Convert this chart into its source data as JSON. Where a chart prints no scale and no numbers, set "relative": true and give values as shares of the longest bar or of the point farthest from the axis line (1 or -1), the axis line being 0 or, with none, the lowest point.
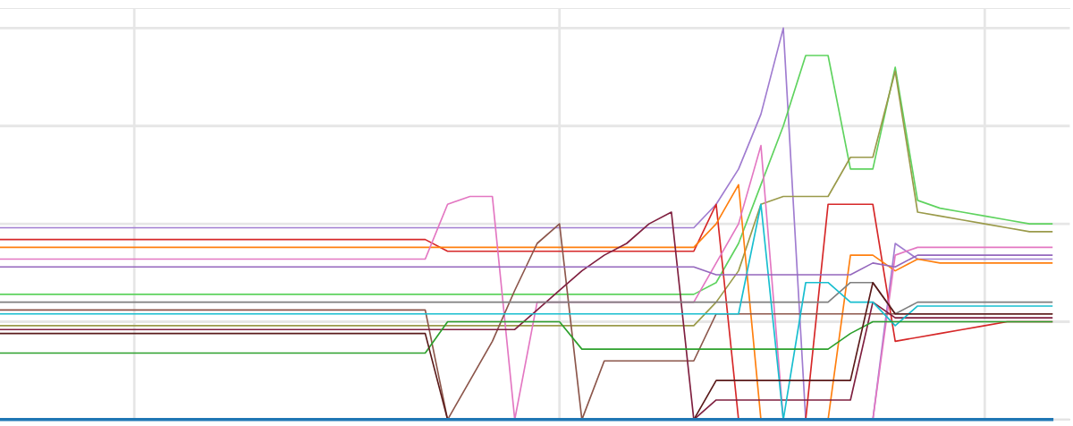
{
  "chart_data": {
    "type": "line",
    "relative": true,
    "grid": true,
    "tick_labels": false,
    "line_style": "solid",
    "categories": [
      null,
      null,
      null,
      null,
      null,
      null,
      null,
      null,
      null,
      null,
      null,
      null,
      null,
      null,
      null,
      null,
      null,
      null,
      null,
      null,
      null,
      null,
      null,
      null,
      null,
      null,
      null,
      null,
      null,
      null,
      null,
      null,
      null,
      null,
      null,
      null,
      null,
      null,
      null,
      null,
      null,
      null,
      null,
      null,
      null,
      null,
      null,
      null
    ],
    "series": [
      {
        "color": "#a07cd0",
        "values": [
          0.49,
          0.49,
          0.49,
          0.49,
          0.49,
          0.49,
          0.49,
          0.49,
          0.49,
          0.49,
          0.49,
          0.49,
          0.49,
          0.49,
          0.49,
          0.49,
          0.49,
          0.49,
          0.49,
          0.49,
          0.49,
          0.49,
          0.49,
          0.49,
          0.49,
          0.49,
          0.49,
          0.49,
          0.49,
          0.49,
          0.49,
          0.49,
          0.55,
          0.64,
          0.78,
          1,
          0,
          0,
          0,
          0,
          0.45,
          0.41,
          0.41,
          0.41,
          0.41,
          0.41,
          0.41,
          0.41
        ]
      },
      {
        "color": "#5fd35f",
        "values": [
          0.32,
          0.32,
          0.32,
          0.32,
          0.32,
          0.32,
          0.32,
          0.32,
          0.32,
          0.32,
          0.32,
          0.32,
          0.32,
          0.32,
          0.32,
          0.32,
          0.32,
          0.32,
          0.32,
          0.32,
          0.32,
          0.32,
          0.32,
          0.32,
          0.32,
          0.32,
          0.32,
          0.32,
          0.32,
          0.32,
          0.32,
          0.32,
          0.35,
          0.45,
          0.6,
          0.75,
          0.93,
          0.93,
          0.64,
          0.64,
          0.9,
          0.56,
          0.54,
          0.53,
          0.52,
          0.51,
          0.5,
          0.5
        ]
      },
      {
        "color": "#9a9a4a",
        "values": [
          0.24,
          0.24,
          0.24,
          0.24,
          0.24,
          0.24,
          0.24,
          0.24,
          0.24,
          0.24,
          0.24,
          0.24,
          0.24,
          0.24,
          0.24,
          0.24,
          0.24,
          0.24,
          0.24,
          0.24,
          0.24,
          0.24,
          0.24,
          0.24,
          0.24,
          0.24,
          0.24,
          0.24,
          0.24,
          0.24,
          0.24,
          0.24,
          0.3,
          0.38,
          0.55,
          0.57,
          0.57,
          0.57,
          0.67,
          0.67,
          0.89,
          0.53,
          0.52,
          0.51,
          0.5,
          0.49,
          0.48,
          0.48
        ]
      },
      {
        "color": "#d62728",
        "values": [
          0.46,
          0.46,
          0.46,
          0.46,
          0.46,
          0.46,
          0.46,
          0.46,
          0.46,
          0.46,
          0.46,
          0.46,
          0.46,
          0.46,
          0.46,
          0.46,
          0.46,
          0.46,
          0.46,
          0.46,
          0.43,
          0.43,
          0.43,
          0.43,
          0.43,
          0.43,
          0.43,
          0.43,
          0.43,
          0.43,
          0.43,
          0.43,
          0.55,
          0,
          0,
          0,
          0,
          0.55,
          0.55,
          0.55,
          0.2,
          0.21,
          0.22,
          0.23,
          0.24,
          0.25,
          0.25,
          0.25
        ]
      },
      {
        "color": "#ff7f0e",
        "values": [
          0.44,
          0.44,
          0.44,
          0.44,
          0.44,
          0.44,
          0.44,
          0.44,
          0.44,
          0.44,
          0.44,
          0.44,
          0.44,
          0.44,
          0.44,
          0.44,
          0.44,
          0.44,
          0.44,
          0.44,
          0.44,
          0.44,
          0.44,
          0.44,
          0.44,
          0.44,
          0.44,
          0.44,
          0.44,
          0.44,
          0.44,
          0.44,
          0.5,
          0.6,
          0,
          0,
          0,
          0,
          0.42,
          0.42,
          0.38,
          0.41,
          0.4,
          0.4,
          0.4,
          0.4,
          0.4,
          0.4
        ]
      },
      {
        "color": "#e377c2",
        "values": [
          0.41,
          0.41,
          0.41,
          0.41,
          0.41,
          0.41,
          0.41,
          0.41,
          0.41,
          0.41,
          0.41,
          0.41,
          0.41,
          0.41,
          0.41,
          0.41,
          0.41,
          0.41,
          0.41,
          0.41,
          0.55,
          0.57,
          0.57,
          0,
          0.3,
          0.3,
          0.3,
          0.3,
          0.3,
          0.3,
          0.3,
          0.3,
          0.4,
          0.5,
          0.7,
          0,
          0,
          0,
          0,
          0,
          0.42,
          0.44,
          0.44,
          0.44,
          0.44,
          0.44,
          0.44,
          0.44
        ]
      },
      {
        "color": "#8c564b",
        "values": [
          0.28,
          0.28,
          0.28,
          0.28,
          0.28,
          0.28,
          0.28,
          0.28,
          0.28,
          0.28,
          0.28,
          0.28,
          0.28,
          0.28,
          0.28,
          0.28,
          0.28,
          0.28,
          0.28,
          0.28,
          0,
          0.1,
          0.2,
          0.33,
          0.45,
          0.5,
          0,
          0.15,
          0.15,
          0.15,
          0.15,
          0.15,
          0.27,
          0.27,
          0.27,
          0.27,
          0.27,
          0.27,
          0.27,
          0.27,
          0.27,
          0.27,
          0.27,
          0.27,
          0.27,
          0.27,
          0.27,
          0.27
        ]
      },
      {
        "color": "#7f1f3f",
        "values": [
          0.23,
          0.23,
          0.23,
          0.23,
          0.23,
          0.23,
          0.23,
          0.23,
          0.23,
          0.23,
          0.23,
          0.23,
          0.23,
          0.23,
          0.23,
          0.23,
          0.23,
          0.23,
          0.23,
          0.23,
          0.23,
          0.23,
          0.23,
          0.23,
          0.28,
          0.33,
          0.38,
          0.42,
          0.45,
          0.5,
          0.53,
          0,
          0.05,
          0.05,
          0.05,
          0.05,
          0.05,
          0.05,
          0.05,
          0.3,
          0.26,
          0.26,
          0.26,
          0.26,
          0.26,
          0.26,
          0.26,
          0.26
        ]
      },
      {
        "color": "#7f7f7f",
        "values": [
          0.3,
          0.3,
          0.3,
          0.3,
          0.3,
          0.3,
          0.3,
          0.3,
          0.3,
          0.3,
          0.3,
          0.3,
          0.3,
          0.3,
          0.3,
          0.3,
          0.3,
          0.3,
          0.3,
          0.3,
          0.3,
          0.3,
          0.3,
          0.3,
          0.3,
          0.3,
          0.3,
          0.3,
          0.3,
          0.3,
          0.3,
          0.3,
          0.3,
          0.3,
          0.3,
          0.3,
          0.3,
          0.3,
          0.35,
          0.35,
          0.27,
          0.3,
          0.3,
          0.3,
          0.3,
          0.3,
          0.3,
          0.3
        ]
      },
      {
        "color": "#17becf",
        "values": [
          0.27,
          0.27,
          0.27,
          0.27,
          0.27,
          0.27,
          0.27,
          0.27,
          0.27,
          0.27,
          0.27,
          0.27,
          0.27,
          0.27,
          0.27,
          0.27,
          0.27,
          0.27,
          0.27,
          0.27,
          0.27,
          0.27,
          0.27,
          0.27,
          0.27,
          0.27,
          0.27,
          0.27,
          0.27,
          0.27,
          0.27,
          0.27,
          0.27,
          0.27,
          0.55,
          0,
          0.35,
          0.35,
          0.3,
          0.3,
          0.24,
          0.29,
          0.29,
          0.29,
          0.29,
          0.29,
          0.29,
          0.29
        ]
      },
      {
        "color": "#2ca02c",
        "values": [
          0.17,
          0.17,
          0.17,
          0.17,
          0.17,
          0.17,
          0.17,
          0.17,
          0.17,
          0.17,
          0.17,
          0.17,
          0.17,
          0.17,
          0.17,
          0.17,
          0.17,
          0.17,
          0.17,
          0.17,
          0.25,
          0.25,
          0.25,
          0.25,
          0.25,
          0.25,
          0.18,
          0.18,
          0.18,
          0.18,
          0.18,
          0.18,
          0.18,
          0.18,
          0.18,
          0.18,
          0.18,
          0.18,
          0.22,
          0.25,
          0.25,
          0.25,
          0.25,
          0.25,
          0.25,
          0.25,
          0.25,
          0.25
        ]
      },
      {
        "color": "#9467bd",
        "values": [
          0.39,
          0.39,
          0.39,
          0.39,
          0.39,
          0.39,
          0.39,
          0.39,
          0.39,
          0.39,
          0.39,
          0.39,
          0.39,
          0.39,
          0.39,
          0.39,
          0.39,
          0.39,
          0.39,
          0.39,
          0.39,
          0.39,
          0.39,
          0.39,
          0.39,
          0.39,
          0.39,
          0.39,
          0.39,
          0.39,
          0.39,
          0.39,
          0.37,
          0.37,
          0.37,
          0.37,
          0.37,
          0.37,
          0.37,
          0.4,
          0.39,
          0.42,
          0.42,
          0.42,
          0.42,
          0.42,
          0.42,
          0.42
        ]
      },
      {
        "color": "#5a1a1a",
        "values": [
          0.22,
          0.22,
          0.22,
          0.22,
          0.22,
          0.22,
          0.22,
          0.22,
          0.22,
          0.22,
          0.22,
          0.22,
          0.22,
          0.22,
          0.22,
          0.22,
          0.22,
          0.22,
          0.22,
          0.22,
          0,
          0,
          0,
          0,
          0,
          0,
          0,
          0,
          0,
          0,
          0,
          0,
          0.1,
          0.1,
          0.1,
          0.1,
          0.1,
          0.1,
          0.1,
          0.35,
          0.27,
          0.27,
          0.27,
          0.27,
          0.27,
          0.27,
          0.27,
          0.27
        ]
      },
      {
        "color": "#1f77b4",
        "values": [
          0,
          0,
          0,
          0,
          0,
          0,
          0,
          0,
          0,
          0,
          0,
          0,
          0,
          0,
          0,
          0,
          0,
          0,
          0,
          0,
          0,
          0,
          0,
          0,
          0,
          0,
          0,
          0,
          0,
          0,
          0,
          0,
          0,
          0,
          0,
          0,
          0,
          0,
          0,
          0,
          0,
          0,
          0,
          0,
          0,
          0,
          0,
          0
        ]
      }
    ]
  }
}
